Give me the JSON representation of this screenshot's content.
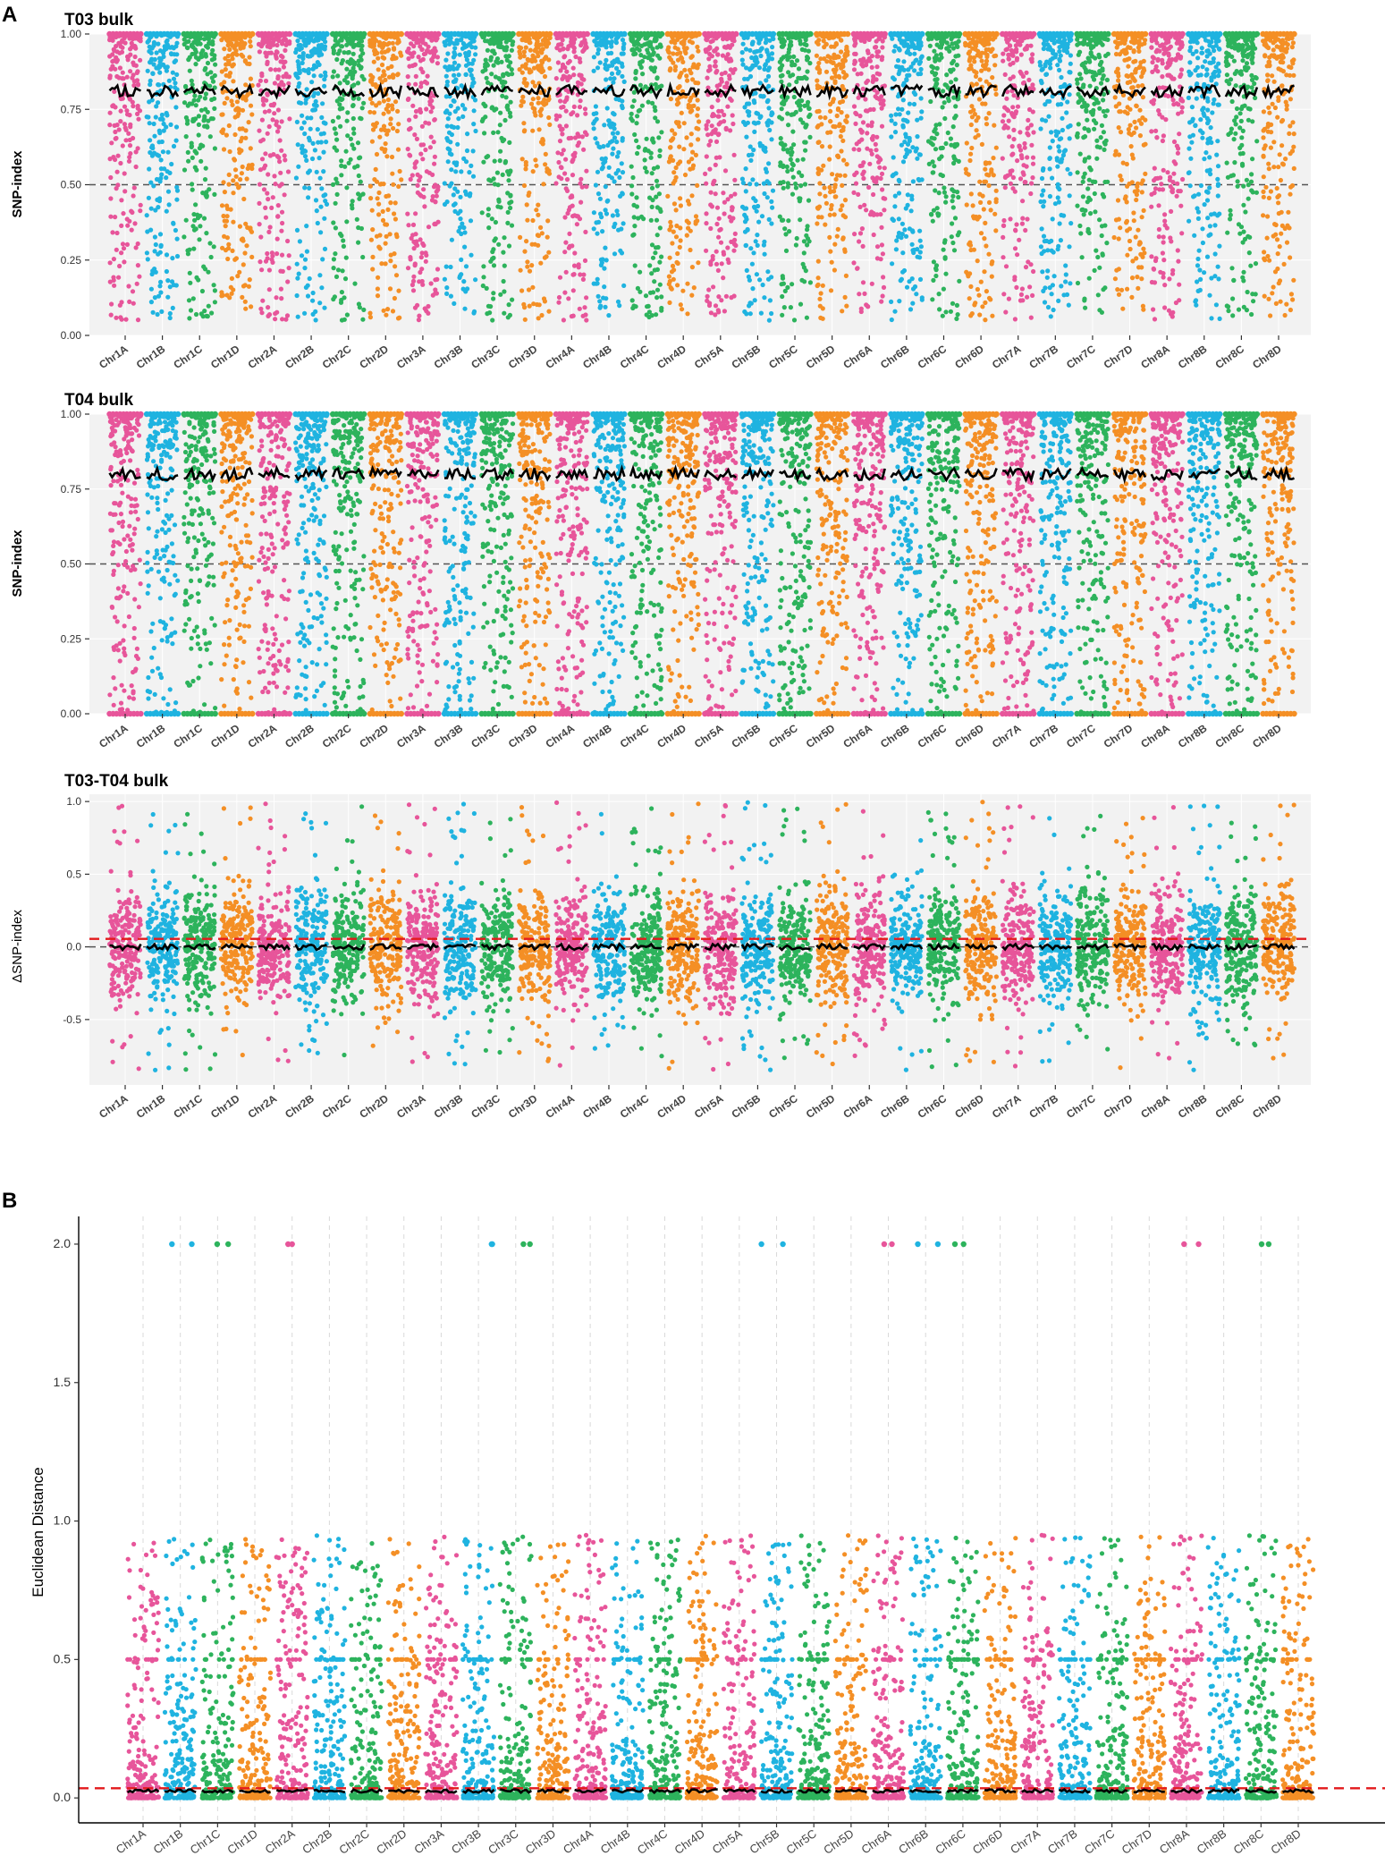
{
  "figure": {
    "panel_labels": [
      "A",
      "B"
    ]
  },
  "colors": {
    "cycle": [
      "#E7559A",
      "#1FB3E0",
      "#2DB35C",
      "#F48F25"
    ],
    "panel_bg": "#F2F2F2",
    "grid": "#FFFFFF",
    "loess": "#000000",
    "threshold": "#E31A1C",
    "reference": "#555555"
  },
  "chart_data": [
    {
      "type": "scatter",
      "title": "T03 bulk",
      "xlabel": "",
      "ylabel": "SNP-index",
      "categories": [
        "Chr1A",
        "Chr1B",
        "Chr1C",
        "Chr1D",
        "Chr2A",
        "Chr2B",
        "Chr2C",
        "Chr2D",
        "Chr3A",
        "Chr3B",
        "Chr3C",
        "Chr3D",
        "Chr4A",
        "Chr4B",
        "Chr4C",
        "Chr4D",
        "Chr5A",
        "Chr5B",
        "Chr5C",
        "Chr5D",
        "Chr6A",
        "Chr6B",
        "Chr6C",
        "Chr6D",
        "Chr7A",
        "Chr7B",
        "Chr7C",
        "Chr7D",
        "Chr8A",
        "Chr8B",
        "Chr8C",
        "Chr8D"
      ],
      "ylim": [
        0,
        1
      ],
      "yticks": [
        0,
        0.25,
        0.5,
        0.75,
        1
      ],
      "ytick_labels": [
        "0.00",
        "0.25",
        "0.50",
        "0.75",
        "1.00"
      ],
      "reference_line": 0.5,
      "trend_level": 0.81,
      "point_dist": {
        "min": 0.05,
        "max": 1.0,
        "mode": "high",
        "pile_top": true
      }
    },
    {
      "type": "scatter",
      "title": "T04 bulk",
      "xlabel": "",
      "ylabel": "SNP-index",
      "categories": [
        "Chr1A",
        "Chr1B",
        "Chr1C",
        "Chr1D",
        "Chr2A",
        "Chr2B",
        "Chr2C",
        "Chr2D",
        "Chr3A",
        "Chr3B",
        "Chr3C",
        "Chr3D",
        "Chr4A",
        "Chr4B",
        "Chr4C",
        "Chr4D",
        "Chr5A",
        "Chr5B",
        "Chr5C",
        "Chr5D",
        "Chr6A",
        "Chr6B",
        "Chr6C",
        "Chr6D",
        "Chr7A",
        "Chr7B",
        "Chr7C",
        "Chr7D",
        "Chr8A",
        "Chr8B",
        "Chr8C",
        "Chr8D"
      ],
      "ylim": [
        0,
        1
      ],
      "yticks": [
        0,
        0.25,
        0.5,
        0.75,
        1
      ],
      "ytick_labels": [
        "0.00",
        "0.25",
        "0.50",
        "0.75",
        "1.00"
      ],
      "reference_line": 0.5,
      "trend_level": 0.8,
      "point_dist": {
        "min": 0.0,
        "max": 1.0,
        "mode": "high",
        "pile_top": true,
        "pile_bottom": true
      }
    },
    {
      "type": "scatter",
      "title": "T03-T04 bulk",
      "xlabel": "",
      "ylabel": "ΔSNP-index",
      "categories": [
        "Chr1A",
        "Chr1B",
        "Chr1C",
        "Chr1D",
        "Chr2A",
        "Chr2B",
        "Chr2C",
        "Chr2D",
        "Chr3A",
        "Chr3B",
        "Chr3C",
        "Chr3D",
        "Chr4A",
        "Chr4B",
        "Chr4C",
        "Chr4D",
        "Chr5A",
        "Chr5B",
        "Chr5C",
        "Chr5D",
        "Chr6A",
        "Chr6B",
        "Chr6C",
        "Chr6D",
        "Chr7A",
        "Chr7B",
        "Chr7C",
        "Chr7D",
        "Chr8A",
        "Chr8B",
        "Chr8C",
        "Chr8D"
      ],
      "ylim": [
        -0.95,
        1.05
      ],
      "yticks": [
        -0.5,
        0,
        0.5,
        1
      ],
      "ytick_labels": [
        "-0.5",
        "0.0",
        "0.5",
        "1.0"
      ],
      "reference_line": 0,
      "threshold_line": 0.055,
      "trend_level": 0.0,
      "point_dist": {
        "min": -0.85,
        "max": 1.0,
        "mode": "center"
      }
    },
    {
      "type": "scatter",
      "title": "",
      "xlabel": "",
      "ylabel": "Euclidean Distance",
      "categories": [
        "Chr1A",
        "Chr1B",
        "Chr1C",
        "Chr1D",
        "Chr2A",
        "Chr2B",
        "Chr2C",
        "Chr2D",
        "Chr3A",
        "Chr3B",
        "Chr3C",
        "Chr3D",
        "Chr4A",
        "Chr4B",
        "Chr4C",
        "Chr4D",
        "Chr5A",
        "Chr5B",
        "Chr5C",
        "Chr5D",
        "Chr6A",
        "Chr6B",
        "Chr6C",
        "Chr6D",
        "Chr7A",
        "Chr7B",
        "Chr7C",
        "Chr7D",
        "Chr8A",
        "Chr8B",
        "Chr8C",
        "Chr8D"
      ],
      "ylim": [
        -0.09,
        2.1
      ],
      "yticks": [
        0,
        0.5,
        1,
        1.5,
        2
      ],
      "ytick_labels": [
        "0.0",
        "0.5",
        "1.0",
        "1.5",
        "2.0"
      ],
      "threshold_line": 0.035,
      "trend_level": 0.025,
      "point_dist": {
        "min": 0.0,
        "max": 2.0,
        "mode": "low"
      },
      "max_value_points": [
        "Chr1B",
        "Chr1C",
        "Chr2A",
        "Chr3B",
        "Chr3C",
        "Chr5B",
        "Chr6A",
        "Chr6B",
        "Chr6C",
        "Chr8A",
        "Chr8C"
      ]
    }
  ]
}
